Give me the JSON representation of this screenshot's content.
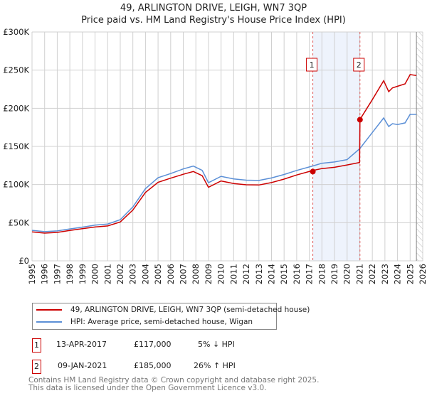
{
  "title": "49, ARLINGTON DRIVE, LEIGH, WN7 3QP",
  "subtitle": "Price paid vs. HM Land Registry's House Price Index (HPI)",
  "colors": {
    "property": "#cc0000",
    "hpi": "#5b8fd6",
    "shade": "#eef3fc"
  },
  "chart_data": {
    "type": "line",
    "xlim": [
      1995,
      2026
    ],
    "ylim": [
      0,
      300000
    ],
    "yticks": [
      0,
      50000,
      100000,
      150000,
      200000,
      250000,
      300000
    ],
    "ytick_labels": [
      "£0",
      "£50K",
      "£100K",
      "£150K",
      "£200K",
      "£250K",
      "£300K"
    ],
    "xticks": [
      1995,
      1996,
      1997,
      1998,
      1999,
      2000,
      2001,
      2002,
      2003,
      2004,
      2005,
      2006,
      2007,
      2008,
      2009,
      2010,
      2011,
      2012,
      2013,
      2014,
      2015,
      2016,
      2017,
      2018,
      2019,
      2020,
      2021,
      2022,
      2023,
      2024,
      2025,
      2026
    ],
    "grid": true,
    "series": [
      {
        "name": "49, ARLINGTON DRIVE, LEIGH, WN7 3QP (semi-detached house)",
        "x": [
          1995,
          1996,
          1997,
          1998,
          1999,
          2000,
          2001,
          2002,
          2003,
          2004,
          2005,
          2006,
          2007,
          2007.8,
          2008.5,
          2009,
          2010,
          2011,
          2012,
          2013,
          2014,
          2015,
          2016,
          2017.28,
          2018,
          2019,
          2020,
          2020.99,
          2021.02,
          2022,
          2022.9,
          2023.3,
          2023.6,
          2024,
          2024.6,
          2025,
          2025.5
        ],
        "y": [
          38000,
          37500,
          38500,
          40000,
          41000,
          43000,
          45500,
          52000,
          68000,
          90000,
          102000,
          107000,
          113000,
          118000,
          113000,
          97000,
          104000,
          100000,
          99000,
          100000,
          104000,
          108000,
          112000,
          117000,
          120000,
          123000,
          127000,
          130000,
          185000,
          210000,
          235000,
          222000,
          228000,
          230000,
          232000,
          243000,
          243000
        ]
      },
      {
        "name": "HPI: Average price, semi-detached house, Wigan",
        "x": [
          1995,
          1996,
          1997,
          1998,
          1999,
          2000,
          2001,
          2002,
          2003,
          2004,
          2005,
          2006,
          2007,
          2007.8,
          2008.5,
          2009,
          2010,
          2011,
          2012,
          2013,
          2014,
          2015,
          2016,
          2017.28,
          2018,
          2019,
          2020,
          2021,
          2022,
          2022.9,
          2023.3,
          2023.6,
          2024,
          2024.6,
          2025,
          2025.5
        ],
        "y": [
          40000,
          39500,
          40500,
          42000,
          43000,
          45500,
          48000,
          55000,
          72000,
          95000,
          108000,
          113000,
          120000,
          125000,
          120000,
          103000,
          110000,
          106000,
          105000,
          106000,
          110000,
          114000,
          118000,
          123000,
          127000,
          130000,
          134000,
          148000,
          168000,
          186000,
          175000,
          180000,
          180000,
          182000,
          192000,
          192000
        ]
      }
    ],
    "sales": [
      {
        "label": "1",
        "x": 2017.28,
        "y": 117000
      },
      {
        "label": "2",
        "x": 2021.02,
        "y": 185000
      }
    ],
    "forecast_start": 2025.5
  },
  "legend": {
    "property": "49, ARLINGTON DRIVE, LEIGH, WN7 3QP (semi-detached house)",
    "hpi": "HPI: Average price, semi-detached house, Wigan"
  },
  "transactions": [
    {
      "num": "1",
      "date": "13-APR-2017",
      "price": "£117,000",
      "hpi": "5% ↓ HPI"
    },
    {
      "num": "2",
      "date": "09-JAN-2021",
      "price": "£185,000",
      "hpi": "26% ↑ HPI"
    }
  ],
  "footer": [
    "Contains HM Land Registry data © Crown copyright and database right 2025.",
    "This data is licensed under the Open Government Licence v3.0."
  ]
}
